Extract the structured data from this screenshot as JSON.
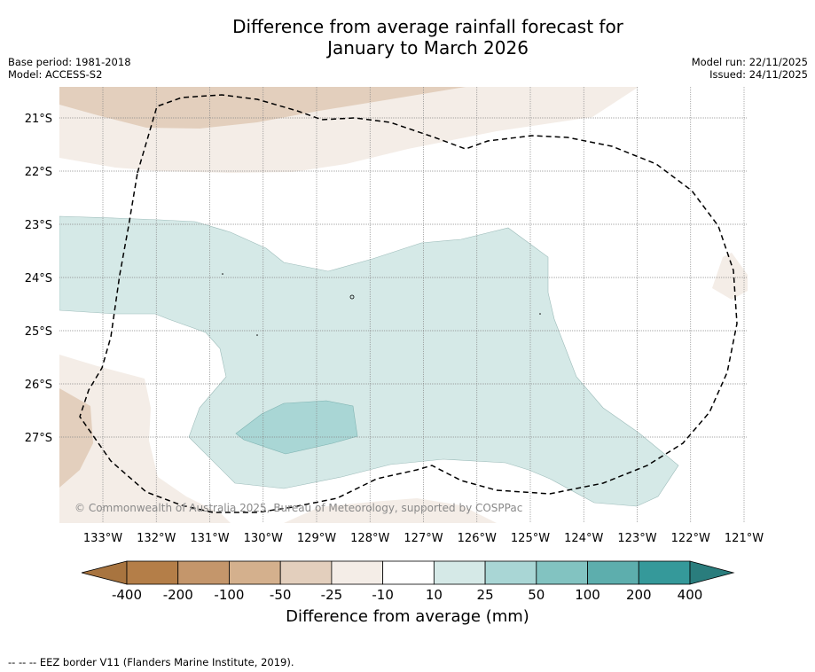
{
  "title_line1": "Difference from average rainfall forecast for",
  "title_line2": "January to March 2026",
  "base_period": "Base period: 1981-2018",
  "model": "Model: ACCESS-S2",
  "model_run": "Model run: 22/11/2025",
  "issued": "Issued: 24/11/2025",
  "latitudes": [
    "21°S",
    "22°S",
    "23°S",
    "24°S",
    "25°S",
    "26°S",
    "27°S"
  ],
  "longitudes": [
    "133°W",
    "132°W",
    "131°W",
    "130°W",
    "129°W",
    "128°W",
    "127°W",
    "126°W",
    "125°W",
    "124°W",
    "123°W",
    "122°W",
    "121°W"
  ],
  "copyright": "© Commonwealth of Australia 2025, Bureau of Meteorology, supported by COSPPac",
  "colorbar": {
    "ticks": [
      "-400",
      "-200",
      "-100",
      "-50",
      "-25",
      "-10",
      "10",
      "25",
      "50",
      "100",
      "200",
      "400"
    ],
    "colors": [
      "#a8743f",
      "#b47e48",
      "#c4966b",
      "#d4b08d",
      "#e3cfbd",
      "#f4ede7",
      "#ffffff",
      "#d5e9e7",
      "#a9d6d5",
      "#82c3c1",
      "#5daead",
      "#35999a",
      "#2a7d7d"
    ],
    "title": "Difference from average (mm)"
  },
  "map_colors": {
    "light_brown": "#f4ede7",
    "mid_brown": "#e3cfbd",
    "light_teal": "#d5e9e7",
    "mid_teal": "#a9d6d5"
  },
  "footnote": "--  --  -- EEZ border V11 (Flanders Marine Institute, 2019)."
}
